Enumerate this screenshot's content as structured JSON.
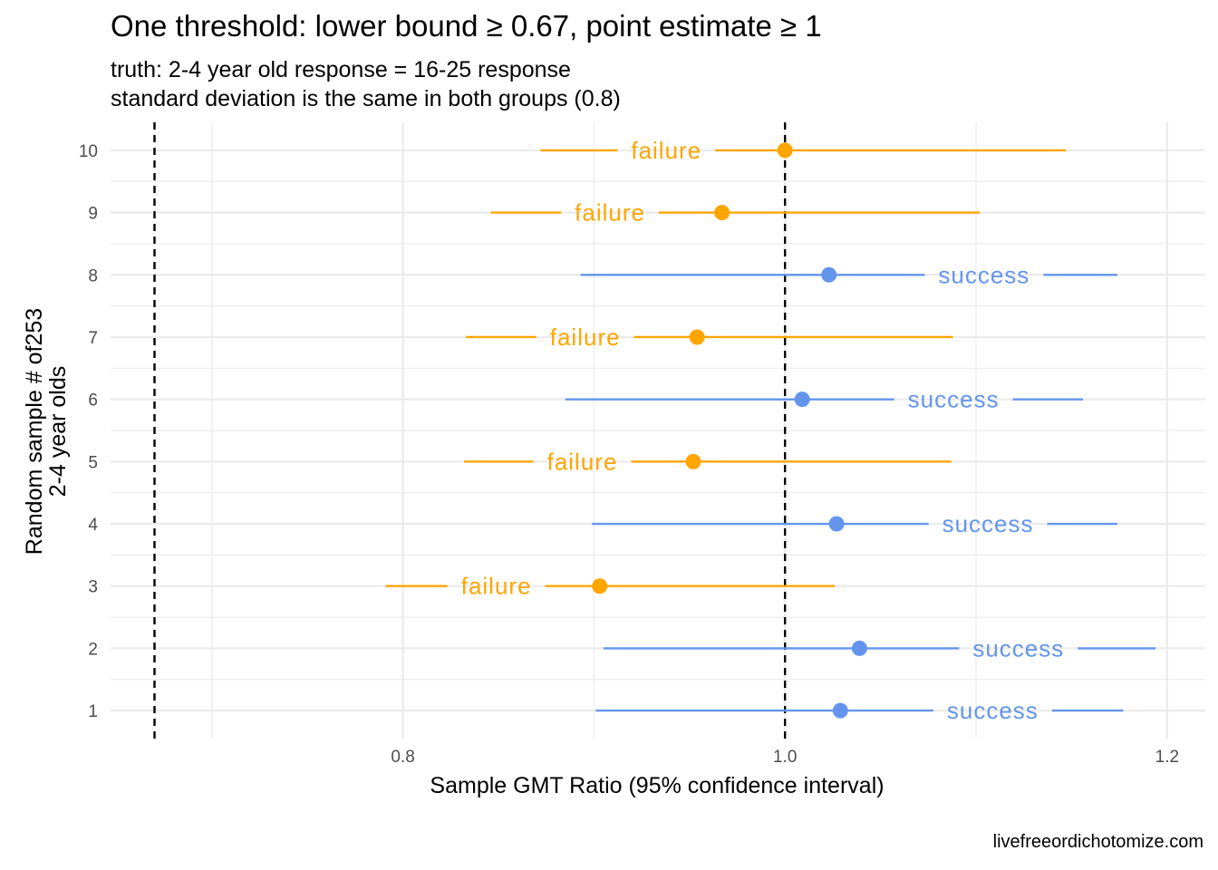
{
  "title": "One threshold: lower bound ≥ 0.67, point estimate ≥ 1",
  "subtitle": [
    "truth: 2-4 year old response = 16-25 response",
    "standard deviation is the same in both groups (0.8)"
  ],
  "caption": "livefreeordichotomize.com",
  "chart_data": {
    "type": "scatter",
    "title": "One threshold: lower bound ≥ 0.67, point estimate ≥ 1",
    "xlabel": "Sample GMT Ratio (95% confidence interval)",
    "ylabel": [
      "Random sample # of253",
      "2-4 year olds"
    ],
    "xlim": [
      0.647,
      1.22
    ],
    "ylim": [
      0.55,
      10.45
    ],
    "x_ticks": [
      {
        "value": 0.8,
        "label": "0.8"
      },
      {
        "value": 1.0,
        "label": "1.0"
      },
      {
        "value": 1.2,
        "label": "1.2"
      }
    ],
    "y_ticks": [
      1,
      2,
      3,
      4,
      5,
      6,
      7,
      8,
      9,
      10
    ],
    "reference_lines": [
      {
        "x": 0.67,
        "style": "dashed",
        "color": "#000000"
      },
      {
        "x": 1.0,
        "style": "dashed",
        "color": "#000000"
      }
    ],
    "colors": {
      "success": "#6495ED",
      "failure": "#FFA500"
    },
    "grid": true,
    "legend": "none",
    "points": [
      {
        "sample": 1,
        "estimate": 1.029,
        "lower": 0.901,
        "upper": 1.177,
        "result": "success",
        "label": "success"
      },
      {
        "sample": 2,
        "estimate": 1.039,
        "lower": 0.905,
        "upper": 1.194,
        "result": "success",
        "label": "success"
      },
      {
        "sample": 3,
        "estimate": 0.903,
        "lower": 0.791,
        "upper": 1.026,
        "result": "failure",
        "label": "failure"
      },
      {
        "sample": 4,
        "estimate": 1.027,
        "lower": 0.899,
        "upper": 1.174,
        "result": "success",
        "label": "success"
      },
      {
        "sample": 5,
        "estimate": 0.952,
        "lower": 0.832,
        "upper": 1.087,
        "result": "failure",
        "label": "failure"
      },
      {
        "sample": 6,
        "estimate": 1.009,
        "lower": 0.885,
        "upper": 1.156,
        "result": "success",
        "label": "success"
      },
      {
        "sample": 7,
        "estimate": 0.954,
        "lower": 0.833,
        "upper": 1.088,
        "result": "failure",
        "label": "failure"
      },
      {
        "sample": 8,
        "estimate": 1.023,
        "lower": 0.893,
        "upper": 1.174,
        "result": "success",
        "label": "success"
      },
      {
        "sample": 9,
        "estimate": 0.967,
        "lower": 0.846,
        "upper": 1.102,
        "result": "failure",
        "label": "failure"
      },
      {
        "sample": 10,
        "estimate": 1.0,
        "lower": 0.872,
        "upper": 1.147,
        "result": "failure",
        "label": "failure"
      }
    ]
  }
}
